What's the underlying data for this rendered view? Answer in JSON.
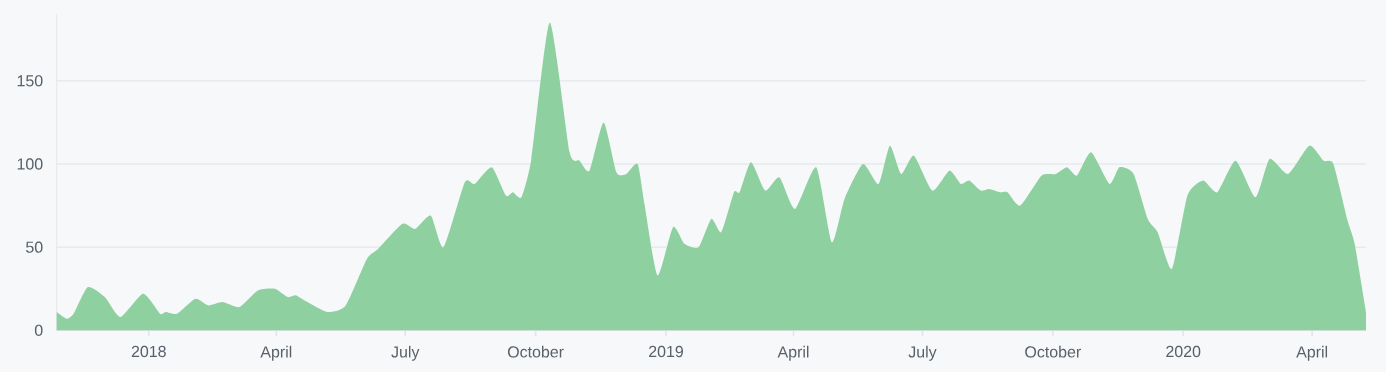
{
  "chart_data": {
    "type": "area",
    "color": "#8fd0a0",
    "grid": "y",
    "xlim": [
      "2017-10-28",
      "2020-05-09"
    ],
    "ylim": [
      0,
      190
    ],
    "xticks": [
      {
        "value": "2018-01-01",
        "label": "2018"
      },
      {
        "value": "2018-04-01",
        "label": "April"
      },
      {
        "value": "2018-07-01",
        "label": "July"
      },
      {
        "value": "2018-10-01",
        "label": "October"
      },
      {
        "value": "2019-01-01",
        "label": "2019"
      },
      {
        "value": "2019-04-01",
        "label": "April"
      },
      {
        "value": "2019-07-01",
        "label": "July"
      },
      {
        "value": "2019-10-01",
        "label": "October"
      },
      {
        "value": "2020-01-01",
        "label": "2020"
      },
      {
        "value": "2020-04-01",
        "label": "April"
      }
    ],
    "yticks": [
      0,
      50,
      100,
      150
    ],
    "x": [
      "2017-10-28",
      "2017-11-04",
      "2017-11-09",
      "2017-11-19",
      "2017-12-01",
      "2017-12-12",
      "2017-12-28",
      "2018-01-09",
      "2018-01-13",
      "2018-01-21",
      "2018-02-03",
      "2018-02-12",
      "2018-02-22",
      "2018-03-06",
      "2018-03-19",
      "2018-03-31",
      "2018-04-09",
      "2018-04-15",
      "2018-04-23",
      "2018-05-07",
      "2018-05-20",
      "2018-06-04",
      "2018-06-12",
      "2018-06-29",
      "2018-07-08",
      "2018-07-19",
      "2018-07-28",
      "2018-08-12",
      "2018-08-19",
      "2018-08-31",
      "2018-09-10",
      "2018-09-15",
      "2018-09-21",
      "2018-09-28",
      "2018-10-11",
      "2018-10-25",
      "2018-11-01",
      "2018-11-08",
      "2018-11-18",
      "2018-11-27",
      "2018-12-04",
      "2018-12-12",
      "2018-12-17",
      "2018-12-26",
      "2019-01-06",
      "2019-01-14",
      "2019-01-24",
      "2019-02-02",
      "2019-02-09",
      "2019-02-18",
      "2019-02-22",
      "2019-03-02",
      "2019-03-12",
      "2019-03-22",
      "2019-04-02",
      "2019-04-17",
      "2019-04-28",
      "2019-05-07",
      "2019-05-20",
      "2019-05-31",
      "2019-06-08",
      "2019-06-16",
      "2019-06-25",
      "2019-07-08",
      "2019-07-20",
      "2019-07-28",
      "2019-08-03",
      "2019-08-11",
      "2019-08-17",
      "2019-08-25",
      "2019-08-30",
      "2019-09-08",
      "2019-09-23",
      "2019-10-03",
      "2019-10-11",
      "2019-10-18",
      "2019-10-28",
      "2019-11-10",
      "2019-11-17",
      "2019-11-27",
      "2019-12-07",
      "2019-12-14",
      "2019-12-24",
      "2020-01-04",
      "2020-01-15",
      "2020-01-25",
      "2020-02-07",
      "2020-02-21",
      "2020-03-02",
      "2020-03-15",
      "2020-03-30",
      "2020-04-09",
      "2020-04-16",
      "2020-04-26",
      "2020-05-01",
      "2020-05-09"
    ],
    "values": [
      11,
      7,
      10,
      26,
      20,
      8,
      22,
      10,
      11,
      10,
      19,
      15,
      17,
      14,
      24,
      25,
      20,
      21,
      17,
      11,
      15,
      43,
      49,
      64,
      61,
      69,
      50,
      89,
      88,
      98,
      81,
      83,
      80,
      103,
      185,
      107,
      102,
      96,
      125,
      95,
      94,
      100,
      75,
      33,
      62,
      52,
      50,
      67,
      59,
      83,
      83,
      101,
      84,
      92,
      73,
      98,
      53,
      79,
      100,
      88,
      111,
      94,
      105,
      84,
      96,
      88,
      90,
      84,
      85,
      83,
      83,
      75,
      93,
      94,
      98,
      93,
      107,
      88,
      98,
      94,
      67,
      59,
      37,
      81,
      90,
      83,
      102,
      80,
      103,
      94,
      111,
      102,
      100,
      66,
      52,
      11
    ]
  }
}
